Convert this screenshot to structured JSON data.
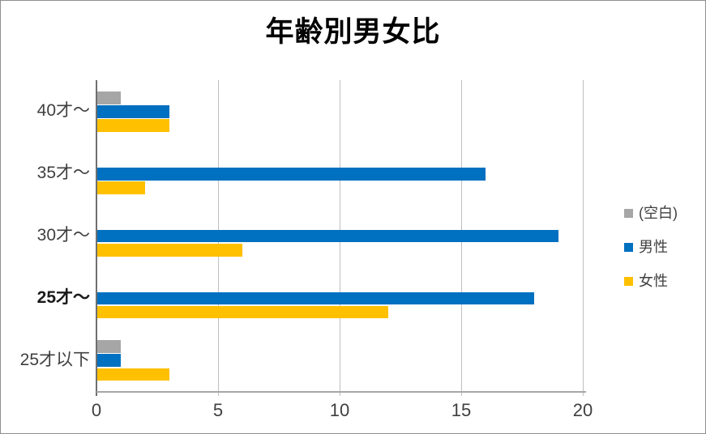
{
  "window": {
    "background": "#FFFFFF",
    "border_color": "#8F8F8F"
  },
  "chart_data": {
    "type": "bar",
    "orientation": "horizontal",
    "title": "年齢別男女比",
    "categories": [
      "40才〜",
      "35才〜",
      "30才〜",
      "25才～",
      "25才以下"
    ],
    "emphasized_category_index": 3,
    "series": [
      {
        "name": "(空白)",
        "color": "#A6A6A6",
        "values": [
          1,
          0,
          0,
          0,
          1
        ]
      },
      {
        "name": "男性",
        "color": "#0070C0",
        "values": [
          3,
          16,
          19,
          18,
          1
        ]
      },
      {
        "name": "女性",
        "color": "#FFC000",
        "values": [
          3,
          2,
          6,
          12,
          3
        ]
      }
    ],
    "xlim": [
      0,
      20
    ],
    "xticks": [
      0,
      5,
      10,
      15,
      20
    ],
    "grid": "vertical-major",
    "legend_position": "right",
    "colors": {
      "gridline": "#BFBFBF",
      "zero_axis": "#6F6F6F",
      "baseline": "#A6A6A6",
      "tick_text": "#3F3F3F",
      "title_text": "#000000"
    }
  }
}
